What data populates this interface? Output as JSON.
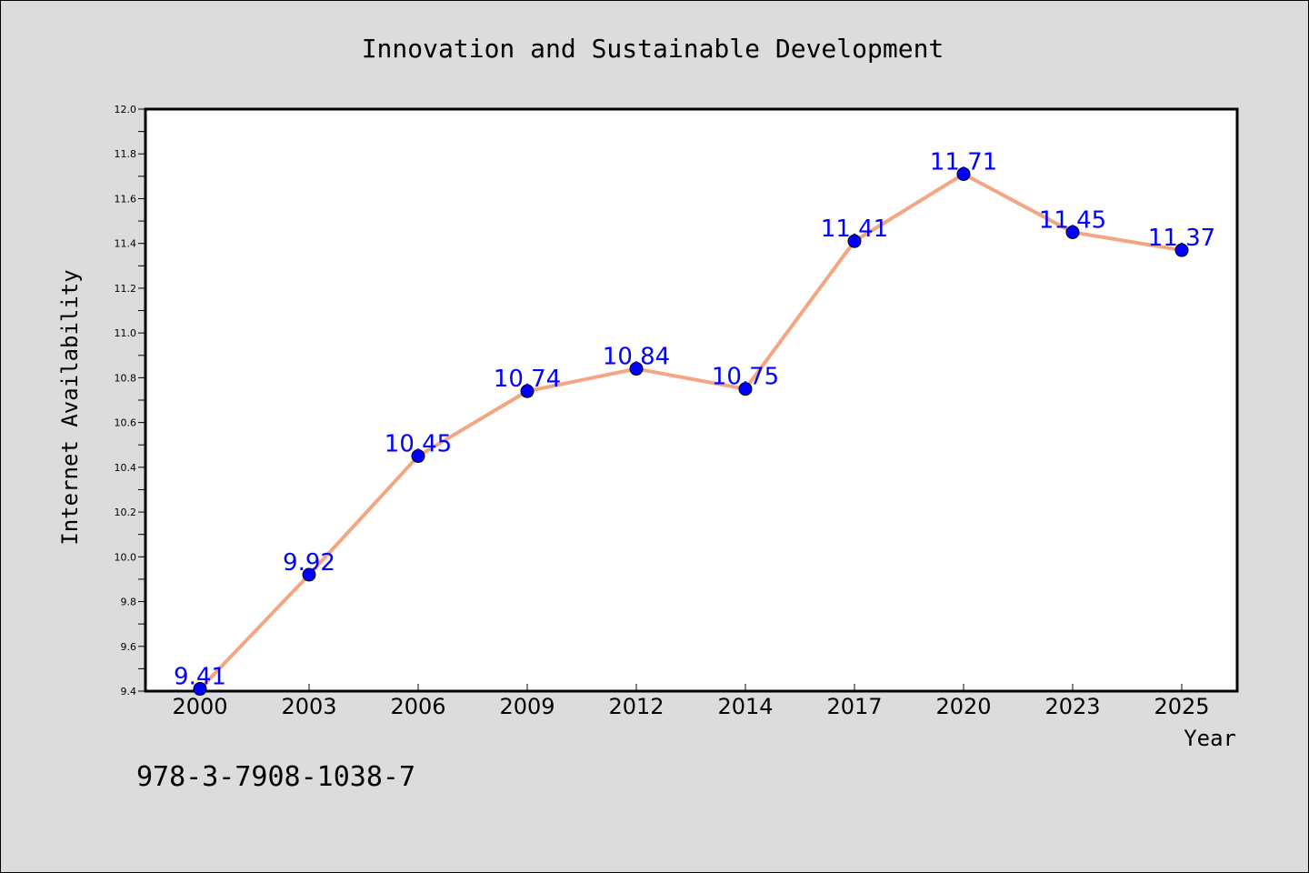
{
  "chart_data": {
    "type": "line",
    "title": "Innovation and Sustainable Development",
    "xlabel": "Year",
    "ylabel": "Internet Availability",
    "categories": [
      "2000",
      "2003",
      "2006",
      "2009",
      "2012",
      "2014",
      "2017",
      "2020",
      "2023",
      "2025"
    ],
    "series": [
      {
        "values": [
          9.41,
          9.92,
          10.45,
          10.74,
          10.84,
          10.75,
          11.41,
          11.71,
          11.45,
          11.37
        ]
      }
    ],
    "data_labels": [
      "9.41",
      "9.92",
      "10.45",
      "10.74",
      "10.84",
      "10.75",
      "11.41",
      "11.71",
      "11.45",
      "11.37"
    ],
    "ylim": [
      9.4,
      12.0
    ],
    "yticks": [
      "9.4",
      "9.6",
      "9.8",
      "10.0",
      "10.2",
      "10.4",
      "10.6",
      "10.8",
      "11.0",
      "11.2",
      "11.4",
      "11.6",
      "11.8",
      "12.0"
    ],
    "grid": false,
    "legend": "none",
    "colors": {
      "line": "#f4a582",
      "marker": "#0000ff",
      "data_label": "#0000ff",
      "background": "#dcdcdc",
      "plot_background": "#ffffff"
    }
  },
  "annotation": "978-3-7908-1038-7"
}
